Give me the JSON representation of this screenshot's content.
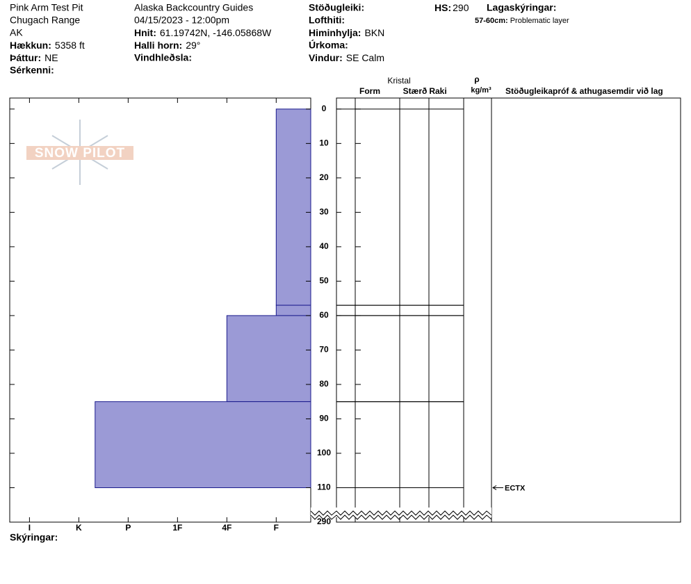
{
  "header": {
    "site": "Pink Arm Test Pit",
    "range": "Chugach Range",
    "state": "AK",
    "elevation": {
      "label": "Hækkun:",
      "value": "5358 ft"
    },
    "aspect": {
      "label": "Þáttur:",
      "value": "NE"
    },
    "features": {
      "label": "Sérkenni:"
    },
    "operation": "Alaska Backcountry Guides",
    "datetime": "04/15/2023 - 12:00pm",
    "coords": {
      "label": "Hnit:",
      "value": "61.19742N, -146.05868W"
    },
    "slope": {
      "label": "Halli horn:",
      "value": "29°"
    },
    "wind_loading": {
      "label": "Vindhleðsla:"
    },
    "stability": {
      "label": "Stöðugleiki:"
    },
    "air_temp": {
      "label": "Lofthiti:"
    },
    "sky": {
      "label": "Himinhylja:",
      "value": "BKN"
    },
    "precip": {
      "label": "Úrkoma:"
    },
    "wind": {
      "label": "Vindur:",
      "value": "SE Calm"
    },
    "hs_label": "HS:",
    "layer_notes_title": "Lagaskýringar:",
    "layer_notes": [
      {
        "label": "57-60cm:",
        "value": "Problematic layer"
      }
    ],
    "logo": "SNOW PILOT",
    "notes_label": "Skýringar:"
  },
  "chart_data": {
    "type": "hardness-profile",
    "hs": 290,
    "columns": {
      "crystal": "Kristal",
      "form": "Form",
      "size": "Stærð",
      "moisture": "Raki",
      "density_symbol": "ρ",
      "density_unit": "kg/m³",
      "tests": "Stöðugleikapróf & athugasemdir við lag"
    },
    "color": "#9b9ad6",
    "layers": [
      {
        "top": 0,
        "bottom": 57,
        "hardness": 1
      },
      {
        "top": 57,
        "bottom": 60,
        "hardness": 1
      },
      {
        "top": 60,
        "bottom": 85,
        "hardness": 2
      },
      {
        "top": 85,
        "bottom": 110,
        "hardness": 4.67
      }
    ],
    "tests": [
      {
        "depth": 110,
        "label": "ECTX"
      }
    ],
    "xlim": [
      0.3,
      6.4
    ],
    "xticks": [
      {
        "value": 6,
        "label": "I"
      },
      {
        "value": 5,
        "label": "K"
      },
      {
        "value": 4,
        "label": "P"
      },
      {
        "value": 3,
        "label": "1F"
      },
      {
        "value": 2,
        "label": "4F"
      },
      {
        "value": 1,
        "label": "F"
      }
    ],
    "ylim": [
      -3.2,
      120
    ],
    "yticks": [
      0,
      10,
      20,
      30,
      40,
      50,
      60,
      70,
      80,
      90,
      100,
      110
    ]
  }
}
